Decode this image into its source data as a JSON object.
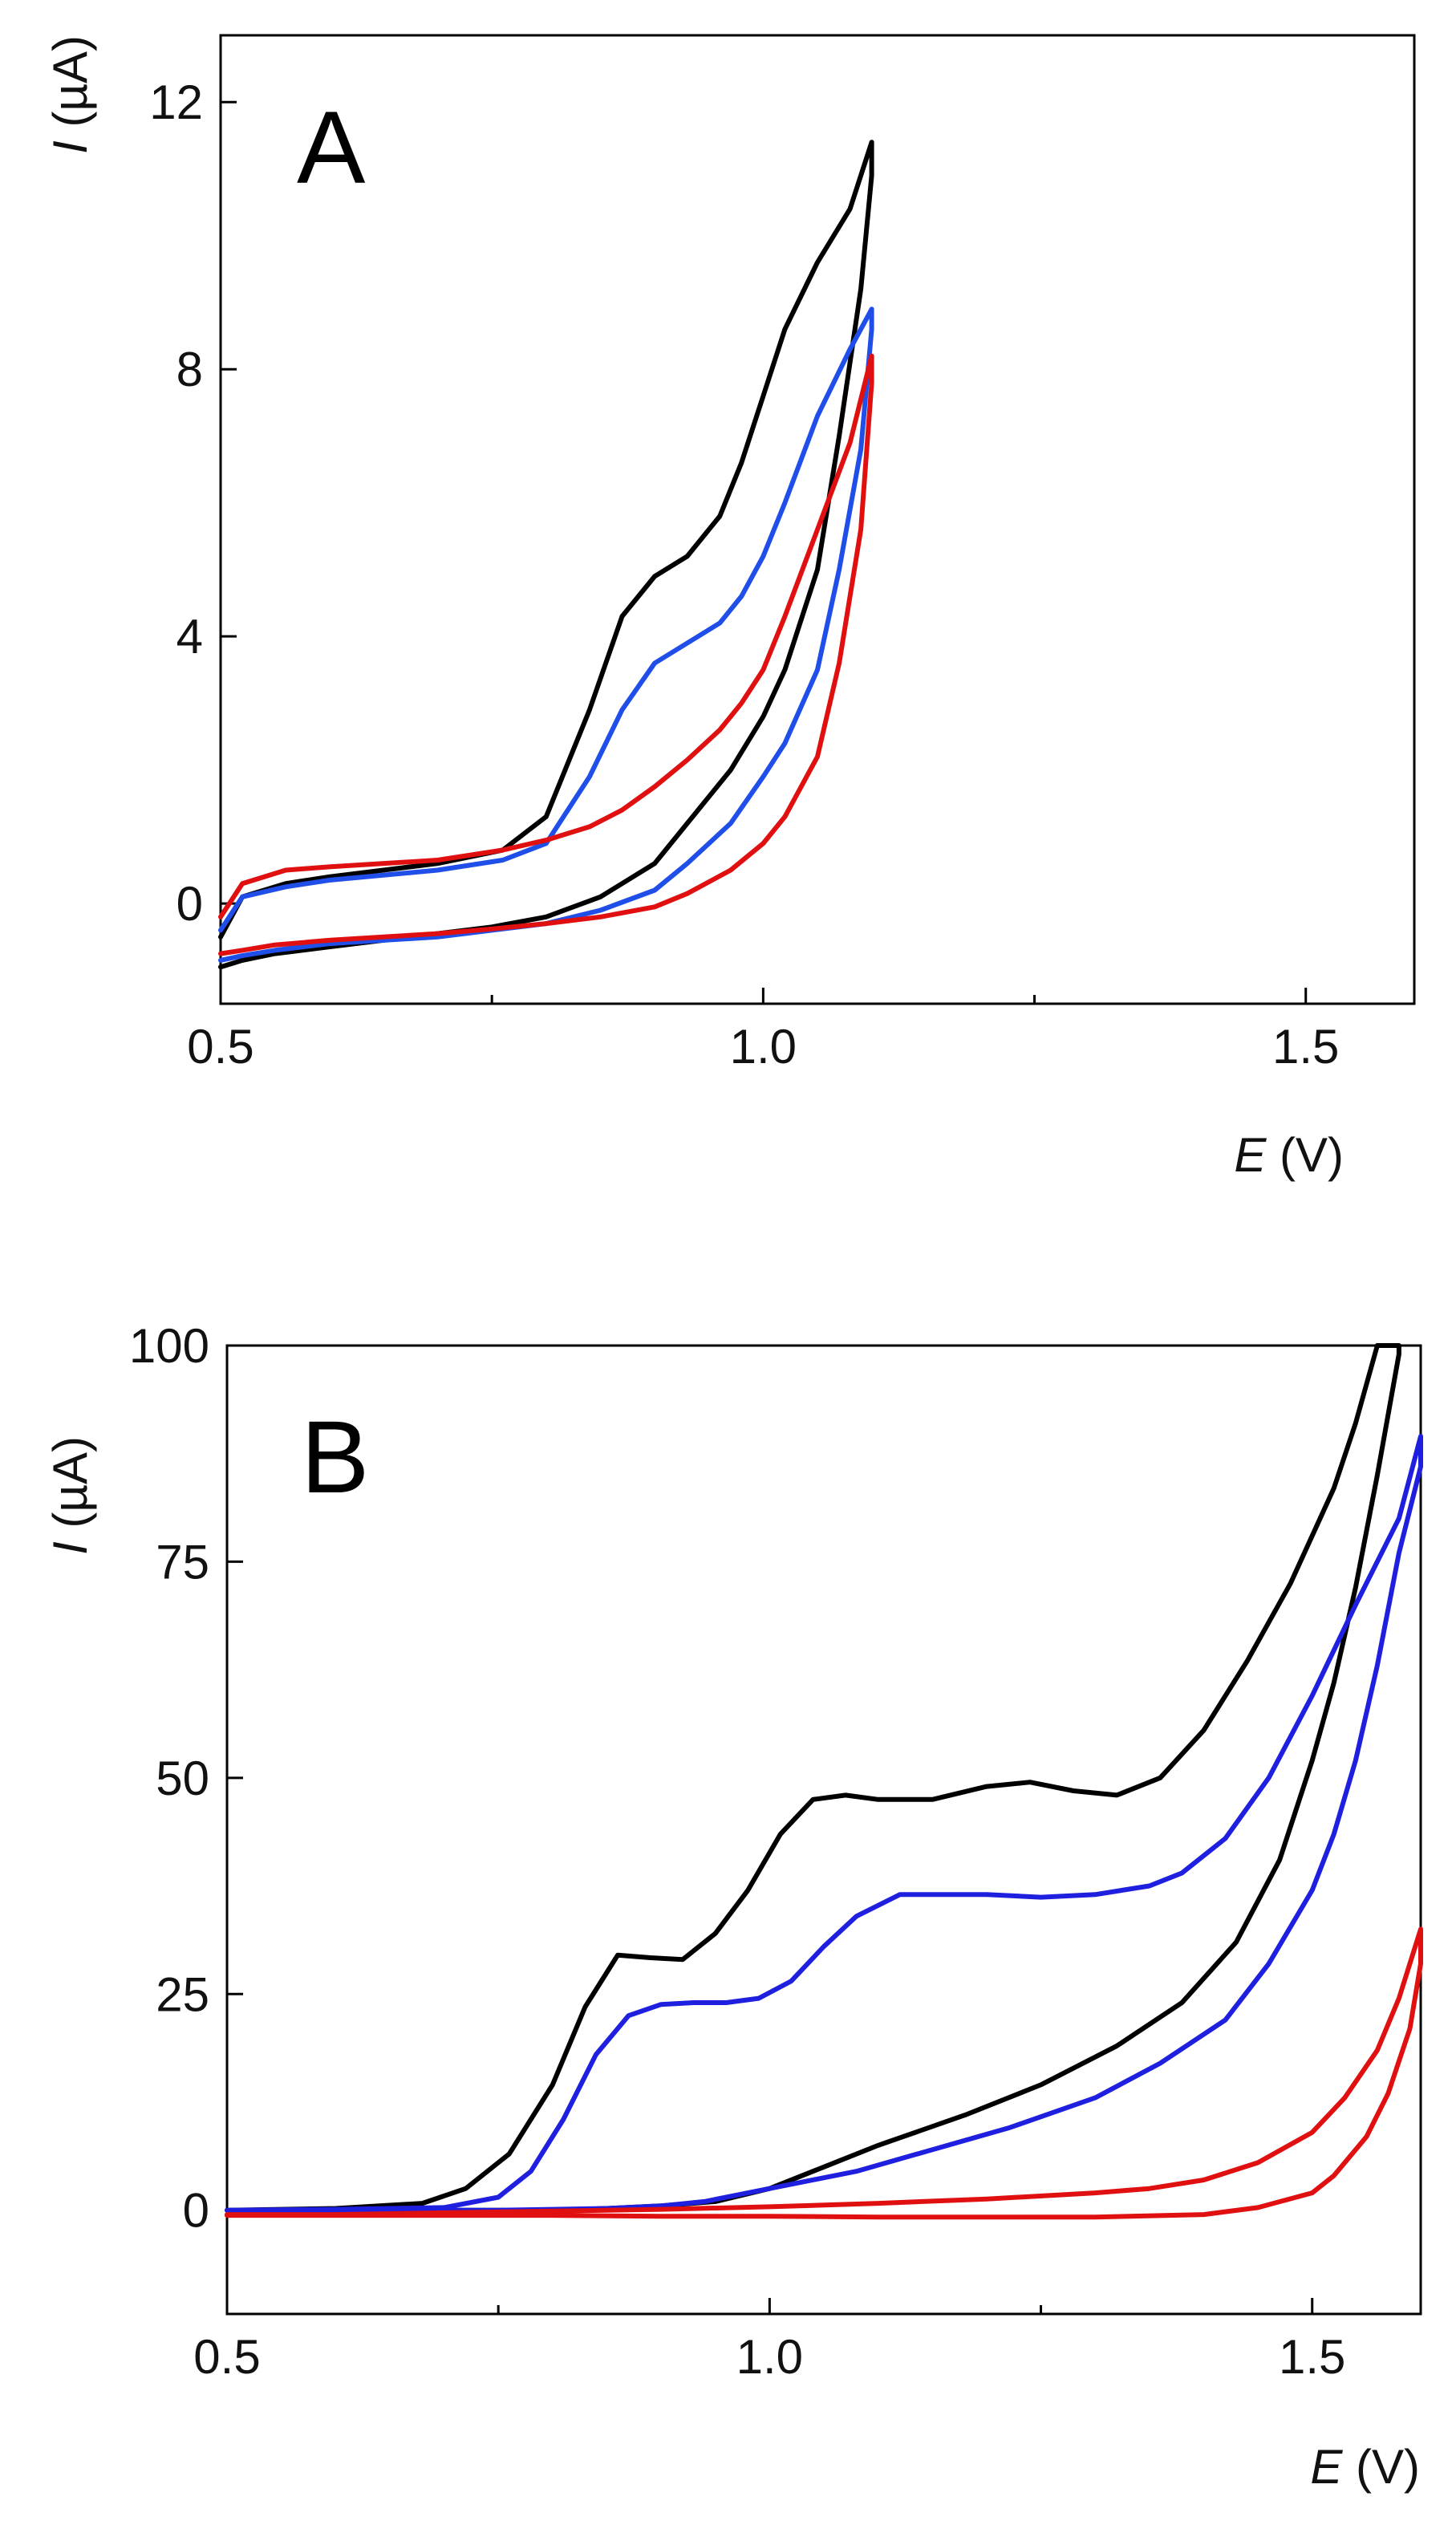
{
  "chart_data": [
    {
      "type": "line",
      "panel_label": "A",
      "xlabel_var": "E",
      "xlabel_unit": " (V)",
      "ylabel_var": "I",
      "ylabel_unit": " (µA)",
      "xlim": [
        0.5,
        1.6
      ],
      "ylim": [
        -1.5,
        13.0
      ],
      "xticks": [
        {
          "value": 0.5,
          "label": "0.5"
        },
        {
          "value": 1.0,
          "label": "1.0"
        },
        {
          "value": 1.5,
          "label": "1.5"
        }
      ],
      "xminor": [
        0.75,
        1.25
      ],
      "yticks": [
        {
          "value": 0,
          "label": "0"
        },
        {
          "value": 4,
          "label": "4"
        },
        {
          "value": 8,
          "label": "8"
        },
        {
          "value": 12,
          "label": "12"
        }
      ],
      "series": [
        {
          "name": "black",
          "color": "#000000",
          "x": [
            0.5,
            0.52,
            0.56,
            0.6,
            0.7,
            0.76,
            0.8,
            0.84,
            0.87,
            0.9,
            0.93,
            0.96,
            0.98,
            1.0,
            1.02,
            1.05,
            1.08,
            1.1,
            1.1,
            1.09,
            1.07,
            1.05,
            1.02,
            1.0,
            0.97,
            0.93,
            0.9,
            0.85,
            0.8,
            0.75,
            0.7,
            0.65,
            0.6,
            0.55,
            0.52,
            0.5
          ],
          "y": [
            -0.5,
            0.1,
            0.3,
            0.4,
            0.6,
            0.8,
            1.3,
            2.9,
            4.3,
            4.9,
            5.2,
            5.8,
            6.6,
            7.6,
            8.6,
            9.6,
            10.4,
            11.4,
            10.9,
            9.2,
            7.0,
            5.0,
            3.5,
            2.8,
            2.0,
            1.2,
            0.6,
            0.1,
            -0.2,
            -0.35,
            -0.45,
            -0.55,
            -0.65,
            -0.75,
            -0.85,
            -0.95
          ]
        },
        {
          "name": "blue",
          "color": "#1f4fe8",
          "x": [
            0.5,
            0.52,
            0.56,
            0.6,
            0.7,
            0.76,
            0.8,
            0.84,
            0.87,
            0.9,
            0.93,
            0.96,
            0.98,
            1.0,
            1.02,
            1.05,
            1.08,
            1.1,
            1.1,
            1.09,
            1.07,
            1.05,
            1.02,
            1.0,
            0.97,
            0.93,
            0.9,
            0.85,
            0.8,
            0.75,
            0.7,
            0.65,
            0.6,
            0.55,
            0.52,
            0.5
          ],
          "y": [
            -0.4,
            0.1,
            0.25,
            0.35,
            0.5,
            0.65,
            0.9,
            1.9,
            2.9,
            3.6,
            3.9,
            4.2,
            4.6,
            5.2,
            6.0,
            7.3,
            8.3,
            8.9,
            8.6,
            6.8,
            5.0,
            3.5,
            2.4,
            1.9,
            1.2,
            0.6,
            0.2,
            -0.1,
            -0.3,
            -0.4,
            -0.5,
            -0.55,
            -0.6,
            -0.7,
            -0.78,
            -0.85
          ]
        },
        {
          "name": "red",
          "color": "#e01010",
          "x": [
            0.5,
            0.52,
            0.56,
            0.6,
            0.7,
            0.76,
            0.8,
            0.84,
            0.87,
            0.9,
            0.93,
            0.96,
            0.98,
            1.0,
            1.02,
            1.05,
            1.08,
            1.1,
            1.1,
            1.09,
            1.07,
            1.05,
            1.02,
            1.0,
            0.97,
            0.93,
            0.9,
            0.85,
            0.8,
            0.75,
            0.7,
            0.65,
            0.6,
            0.55,
            0.52,
            0.5
          ],
          "y": [
            -0.2,
            0.3,
            0.5,
            0.55,
            0.65,
            0.8,
            0.95,
            1.15,
            1.4,
            1.75,
            2.15,
            2.6,
            3.0,
            3.5,
            4.3,
            5.6,
            6.9,
            8.2,
            7.8,
            5.6,
            3.6,
            2.2,
            1.3,
            0.9,
            0.5,
            0.15,
            -0.05,
            -0.2,
            -0.3,
            -0.38,
            -0.45,
            -0.5,
            -0.55,
            -0.62,
            -0.7,
            -0.75
          ]
        }
      ]
    },
    {
      "type": "line",
      "panel_label": "B",
      "xlabel_var": "E",
      "xlabel_unit": " (V)",
      "ylabel_var": "I",
      "ylabel_unit": " (µA)",
      "xlim": [
        0.5,
        1.6
      ],
      "ylim": [
        -12,
        100
      ],
      "xticks": [
        {
          "value": 0.5,
          "label": "0.5"
        },
        {
          "value": 1.0,
          "label": "1.0"
        },
        {
          "value": 1.5,
          "label": "1.5"
        }
      ],
      "xminor": [
        0.75,
        1.25
      ],
      "yticks": [
        {
          "value": 0,
          "label": "0"
        },
        {
          "value": 25,
          "label": "25"
        },
        {
          "value": 50,
          "label": "50"
        },
        {
          "value": 75,
          "label": "75"
        },
        {
          "value": 100,
          "label": "100"
        }
      ],
      "series": [
        {
          "name": "black",
          "color": "#000000",
          "x": [
            0.5,
            0.6,
            0.68,
            0.72,
            0.76,
            0.8,
            0.83,
            0.86,
            0.89,
            0.92,
            0.95,
            0.98,
            1.01,
            1.04,
            1.07,
            1.1,
            1.15,
            1.2,
            1.24,
            1.28,
            1.32,
            1.36,
            1.4,
            1.44,
            1.48,
            1.52,
            1.54,
            1.56,
            1.58,
            1.58,
            1.56,
            1.54,
            1.52,
            1.5,
            1.47,
            1.43,
            1.38,
            1.32,
            1.25,
            1.18,
            1.1,
            1.05,
            1.0,
            0.95,
            0.9,
            0.85,
            0.8,
            0.75,
            0.7,
            0.6,
            0.5
          ],
          "y": [
            0,
            0.2,
            0.8,
            2.5,
            6.5,
            14.5,
            23.5,
            29.5,
            29.2,
            29.0,
            32.0,
            37.0,
            43.5,
            47.5,
            48.0,
            47.5,
            47.5,
            49.0,
            49.5,
            48.5,
            48.0,
            50.0,
            55.5,
            63.5,
            72.5,
            83.5,
            91.0,
            100,
            100,
            99.0,
            85.0,
            72.0,
            61.0,
            52.0,
            40.5,
            31.0,
            24.0,
            19.0,
            14.5,
            11.0,
            7.5,
            5.0,
            2.5,
            1.0,
            0.5,
            0.2,
            0,
            0,
            0,
            0,
            0
          ]
        },
        {
          "name": "blue",
          "color": "#1f1fe0",
          "x": [
            0.5,
            0.6,
            0.7,
            0.75,
            0.78,
            0.81,
            0.84,
            0.87,
            0.9,
            0.93,
            0.96,
            0.99,
            1.02,
            1.05,
            1.08,
            1.12,
            1.16,
            1.2,
            1.25,
            1.3,
            1.35,
            1.38,
            1.42,
            1.46,
            1.5,
            1.54,
            1.58,
            1.6,
            1.6,
            1.58,
            1.56,
            1.54,
            1.52,
            1.5,
            1.46,
            1.42,
            1.36,
            1.3,
            1.22,
            1.15,
            1.08,
            1.02,
            0.98,
            0.94,
            0.9,
            0.85,
            0.8,
            0.75,
            0.7,
            0.6,
            0.5
          ],
          "y": [
            0,
            0.1,
            0.3,
            1.5,
            4.5,
            10.5,
            18.0,
            22.5,
            23.8,
            24.0,
            24.0,
            24.5,
            26.5,
            30.5,
            34.0,
            36.5,
            36.5,
            36.5,
            36.2,
            36.5,
            37.5,
            39.0,
            43.0,
            50.0,
            59.5,
            70.0,
            80.0,
            89.5,
            86.0,
            76.0,
            63.0,
            52.0,
            43.5,
            37.0,
            28.5,
            22.0,
            17.0,
            13.0,
            9.5,
            7.0,
            4.5,
            3.0,
            2.0,
            1.0,
            0.5,
            0.2,
            0.1,
            0,
            0,
            0,
            0
          ]
        },
        {
          "name": "red",
          "color": "#e01010",
          "x": [
            0.5,
            0.6,
            0.7,
            0.8,
            0.9,
            1.0,
            1.1,
            1.2,
            1.3,
            1.35,
            1.4,
            1.45,
            1.5,
            1.53,
            1.56,
            1.58,
            1.6,
            1.6,
            1.59,
            1.57,
            1.55,
            1.52,
            1.5,
            1.45,
            1.4,
            1.3,
            1.2,
            1.1,
            1.0,
            0.9,
            0.8,
            0.7,
            0.6,
            0.5
          ],
          "y": [
            -0.5,
            -0.5,
            -0.3,
            -0.1,
            0.1,
            0.4,
            0.8,
            1.3,
            2.0,
            2.5,
            3.5,
            5.5,
            9.0,
            13.0,
            18.5,
            24.5,
            32.5,
            28.5,
            21.0,
            13.5,
            8.5,
            4.0,
            2.0,
            0.3,
            -0.5,
            -0.8,
            -0.8,
            -0.8,
            -0.7,
            -0.7,
            -0.6,
            -0.6,
            -0.6,
            -0.6
          ]
        }
      ]
    }
  ]
}
